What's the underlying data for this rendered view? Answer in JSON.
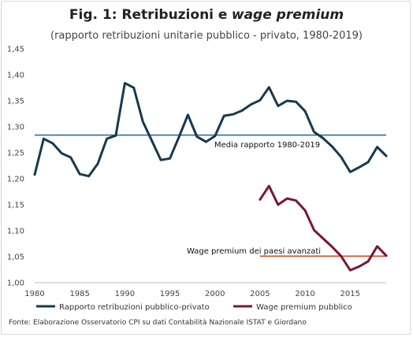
{
  "chart_data": {
    "type": "line",
    "title": "Fig. 1: Retribuzioni e",
    "title_italic": "wage premium",
    "subtitle": "(rapporto retribuzioni unitarie pubblico - privato, 1980-2019)",
    "ylim": [
      1.0,
      1.45
    ],
    "yticks": [
      "1,00",
      "1,05",
      "1,10",
      "1,15",
      "1,20",
      "1,25",
      "1,30",
      "1,35",
      "1,40",
      "1,45"
    ],
    "xlim": [
      1980,
      2019
    ],
    "xticks": [
      "1980",
      "1985",
      "1990",
      "1995",
      "2000",
      "2005",
      "2010",
      "2015"
    ],
    "grid": false,
    "legend_position": "bottom",
    "series": [
      {
        "name": "Rapporto retribuzioni pubblico-privato",
        "color": "#17394f",
        "x": [
          1980,
          1981,
          1982,
          1983,
          1984,
          1985,
          1986,
          1987,
          1988,
          1989,
          1990,
          1991,
          1992,
          1993,
          1994,
          1995,
          1996,
          1997,
          1998,
          1999,
          2000,
          2001,
          2002,
          2003,
          2004,
          2005,
          2006,
          2007,
          2008,
          2009,
          2010,
          2011,
          2012,
          2013,
          2014,
          2015,
          2016,
          2017,
          2018,
          2019
        ],
        "y": [
          1.208,
          1.277,
          1.268,
          1.249,
          1.241,
          1.209,
          1.205,
          1.229,
          1.277,
          1.283,
          1.384,
          1.375,
          1.31,
          1.273,
          1.236,
          1.239,
          1.28,
          1.323,
          1.281,
          1.271,
          1.282,
          1.321,
          1.324,
          1.331,
          1.343,
          1.351,
          1.376,
          1.34,
          1.35,
          1.348,
          1.33,
          1.29,
          1.278,
          1.262,
          1.242,
          1.213,
          1.222,
          1.232,
          1.261,
          1.244
        ]
      },
      {
        "name": "Wage premium pubblico",
        "color": "#7b1538",
        "x": [
          2005,
          2006,
          2007,
          2008,
          2009,
          2010,
          2011,
          2012,
          2013,
          2014,
          2015,
          2016,
          2017,
          2018,
          2019
        ],
        "y": [
          1.16,
          1.186,
          1.15,
          1.162,
          1.158,
          1.139,
          1.101,
          1.085,
          1.069,
          1.051,
          1.024,
          1.031,
          1.041,
          1.07,
          1.052
        ]
      }
    ],
    "reference_lines": [
      {
        "label": "Media rapporto 1980-2019",
        "y": 1.284,
        "x_start": 1980,
        "x_end": 2019,
        "color": "#2e6da4"
      },
      {
        "label": "Wage premium dei paesi avanzati",
        "y": 1.051,
        "x_start": 2005,
        "x_end": 2019,
        "color": "#d84a1f"
      }
    ],
    "source": "Fonte: Elaborazione Osservatorio CPI su dati Contabilità Nazionale ISTAT e Giordano"
  }
}
